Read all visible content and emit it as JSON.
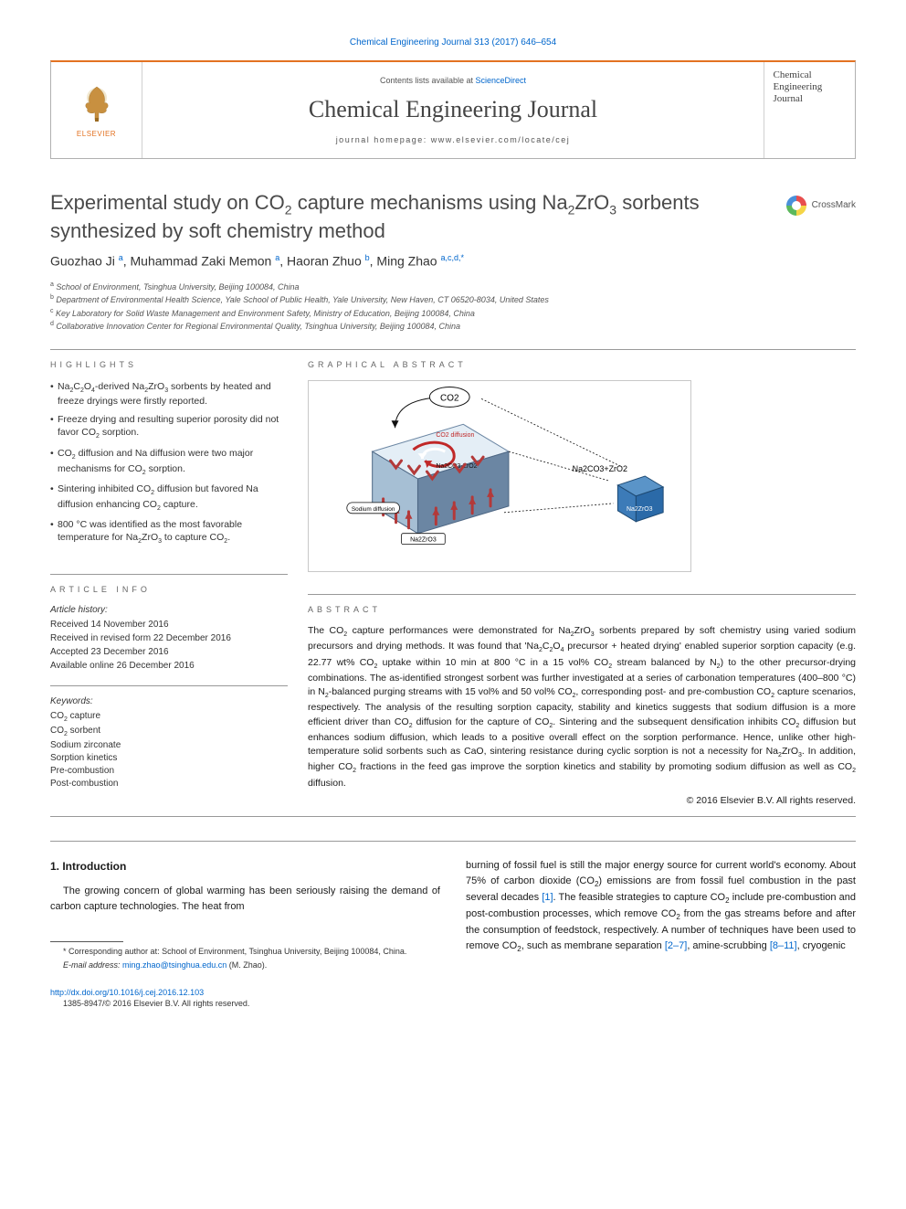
{
  "journal_ref": {
    "text": "Chemical Engineering Journal 313 (2017) 646–654",
    "link_color": "#0066cc"
  },
  "masthead": {
    "publisher": "ELSEVIER",
    "contents_prefix": "Contents lists available at ",
    "contents_link": "ScienceDirect",
    "journal_name": "Chemical Engineering Journal",
    "homepage_prefix": "journal homepage: ",
    "homepage": "www.elsevier.com/locate/cej",
    "cover_line1": "Chemical",
    "cover_line2": "Engineering",
    "cover_line3": "Journal"
  },
  "title": {
    "html": "Experimental study on CO<sub>2</sub> capture mechanisms using Na<sub>2</sub>ZrO<sub>3</sub> sorbents synthesized by soft chemistry method"
  },
  "crossmark_label": "CrossMark",
  "authors_html": "Guozhao Ji <sup>a</sup>, Muhammad Zaki Memon <sup>a</sup>, Haoran Zhuo <sup>b</sup>, Ming Zhao <sup>a,c,d,*</sup>",
  "affiliations": [
    "a School of Environment, Tsinghua University, Beijing 100084, China",
    "b Department of Environmental Health Science, Yale School of Public Health, Yale University, New Haven, CT 06520-8034, United States",
    "c Key Laboratory for Solid Waste Management and Environment Safety, Ministry of Education, Beijing 100084, China",
    "d Collaborative Innovation Center for Regional Environmental Quality, Tsinghua University, Beijing 100084, China"
  ],
  "highlights_heading": "HIGHLIGHTS",
  "highlights": [
    "Na<sub>2</sub>C<sub>2</sub>O<sub>4</sub>-derived Na<sub>2</sub>ZrO<sub>3</sub> sorbents by heated and freeze dryings were firstly reported.",
    "Freeze drying and resulting superior porosity did not favor CO<sub>2</sub> sorption.",
    "CO<sub>2</sub> diffusion and Na diffusion were two major mechanisms for CO<sub>2</sub> sorption.",
    "Sintering inhibited CO<sub>2</sub> diffusion but favored Na diffusion enhancing CO<sub>2</sub> capture.",
    "800 °C was identified as the most favorable temperature for Na<sub>2</sub>ZrO<sub>3</sub> to capture CO<sub>2</sub>."
  ],
  "graphical_heading": "GRAPHICAL ABSTRACT",
  "graphical": {
    "co2_label": "CO2",
    "co2_diffusion": "CO2 diffusion",
    "layer_label": "Na2CO3·ZrO2",
    "sodium_diffusion": "Sodium diffusion",
    "bottom_label": "Na2ZrO3",
    "right_sum": "Na2CO3+ZrO2",
    "cube_label": "Na2ZrO3",
    "colors": {
      "bg": "#ffffff",
      "border": "#c8c8c8",
      "arrow": "#b33939",
      "top_face": "#e4eef6",
      "side_face": "#6b86a3",
      "front_face": "#a6bfd4",
      "cube": "#2b6aa8",
      "cube_top": "#5a94c8",
      "text": "#111111",
      "curve1": "#c02828",
      "curve2": "#1e6fb0"
    }
  },
  "article_info_heading": "ARTICLE INFO",
  "article_info": {
    "history_head": "Article history:",
    "received": "Received 14 November 2016",
    "revised": "Received in revised form 22 December 2016",
    "accepted": "Accepted 23 December 2016",
    "online": "Available online 26 December 2016"
  },
  "keywords_head": "Keywords:",
  "keywords": [
    "CO<sub>2</sub> capture",
    "CO<sub>2</sub> sorbent",
    "Sodium zirconate",
    "Sorption kinetics",
    "Pre-combustion",
    "Post-combustion"
  ],
  "abstract_heading": "ABSTRACT",
  "abstract_html": "The CO<sub>2</sub> capture performances were demonstrated for Na<sub>2</sub>ZrO<sub>3</sub> sorbents prepared by soft chemistry using varied sodium precursors and drying methods. It was found that 'Na<sub>2</sub>C<sub>2</sub>O<sub>4</sub> precursor + heated drying' enabled superior sorption capacity (e.g. 22.77 wt% CO<sub>2</sub> uptake within 10 min at 800 °C in a 15 vol% CO<sub>2</sub> stream balanced by N<sub>2</sub>) to the other precursor-drying combinations. The as-identified strongest sorbent was further investigated at a series of carbonation temperatures (400–800 °C) in N<sub>2</sub>-balanced purging streams with 15 vol% and 50 vol% CO<sub>2</sub>, corresponding post- and pre-combustion CO<sub>2</sub> capture scenarios, respectively. The analysis of the resulting sorption capacity, stability and kinetics suggests that sodium diffusion is a more efficient driver than CO<sub>2</sub> diffusion for the capture of CO<sub>2</sub>. Sintering and the subsequent densification inhibits CO<sub>2</sub> diffusion but enhances sodium diffusion, which leads to a positive overall effect on the sorption performance. Hence, unlike other high-temperature solid sorbents such as CaO, sintering resistance during cyclic sorption is not a necessity for Na<sub>2</sub>ZrO<sub>3</sub>. In addition, higher CO<sub>2</sub> fractions in the feed gas improve the sorption kinetics and stability by promoting sodium diffusion as well as CO<sub>2</sub> diffusion.",
  "copyright": "© 2016 Elsevier B.V. All rights reserved.",
  "intro_heading": "1. Introduction",
  "intro_left_html": "The growing concern of global warming has been seriously raising the demand of carbon capture technologies. The heat from",
  "intro_right_html": "burning of fossil fuel is still the major energy source for current world's economy. About 75% of carbon dioxide (CO<sub>2</sub>) emissions are from fossil fuel combustion in the past several decades <a class='ref' href='#'>[1]</a>. The feasible strategies to capture CO<sub>2</sub> include pre-combustion and post-combustion processes, which remove CO<sub>2</sub> from the gas streams before and after the consumption of feedstock, respectively. A number of techniques have been used to remove CO<sub>2</sub>, such as membrane separation <a class='ref' href='#'>[2–7]</a>, amine-scrubbing <a class='ref' href='#'>[8–11]</a>, cryogenic",
  "footnotes": {
    "corr": "* Corresponding author at: School of Environment, Tsinghua University, Beijing 100084, China.",
    "email_label": "E-mail address: ",
    "email": "ming.zhao@tsinghua.edu.cn",
    "email_suffix": " (M. Zhao)."
  },
  "doi": {
    "url": "http://dx.doi.org/10.1016/j.cej.2016.12.103",
    "issn": "1385-8947/© 2016 Elsevier B.V. All rights reserved."
  }
}
